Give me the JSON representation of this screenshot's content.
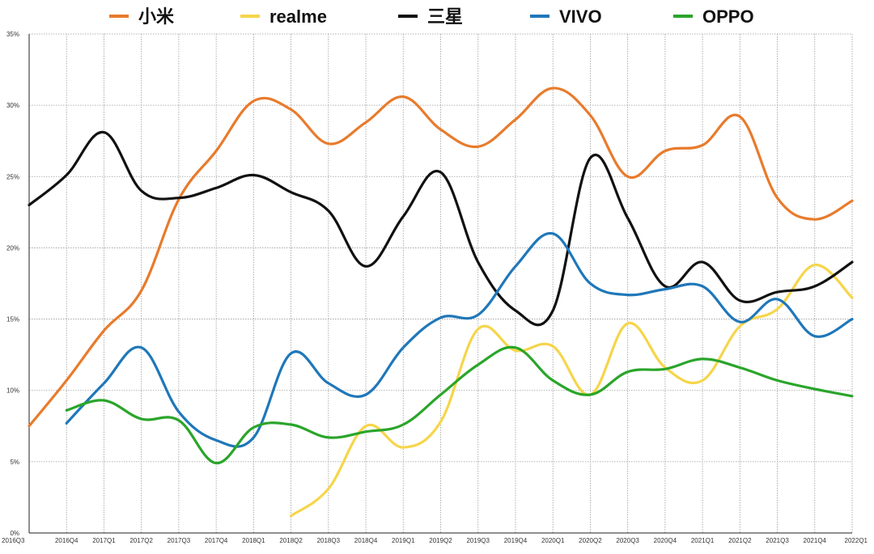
{
  "chart_data": {
    "type": "line",
    "title": "",
    "xlabel": "",
    "ylabel": "",
    "x": [
      "2016Q3",
      "2016Q4",
      "2017Q1",
      "2017Q2",
      "2017Q3",
      "2017Q4",
      "2018Q1",
      "2018Q2",
      "2018Q3",
      "2018Q4",
      "2019Q1",
      "2019Q2",
      "2019Q3",
      "2019Q4",
      "2020Q1",
      "2020Q2",
      "2020Q3",
      "2020Q4",
      "2021Q1",
      "2021Q2",
      "2021Q3",
      "2021Q4",
      "2022Q1"
    ],
    "ylim": [
      0,
      35
    ],
    "yticks": [
      "0%",
      "5%",
      "10%",
      "15%",
      "20%",
      "25%",
      "30%",
      "35%"
    ],
    "grid": true,
    "legend_position": "top",
    "series": [
      {
        "name": "小米",
        "color": "#e87b2c",
        "values": [
          7.5,
          10.7,
          14.2,
          17.0,
          23.4,
          26.8,
          30.3,
          29.7,
          27.3,
          28.8,
          30.6,
          28.3,
          27.1,
          29.0,
          31.2,
          29.3,
          25.0,
          26.8,
          27.2,
          29.2,
          23.5,
          22.0,
          23.3
        ]
      },
      {
        "name": "realme",
        "color": "#f6d54a",
        "values": [
          null,
          null,
          null,
          null,
          null,
          null,
          null,
          1.2,
          3.1,
          7.5,
          6.0,
          7.8,
          14.3,
          12.8,
          13.1,
          9.7,
          14.7,
          11.6,
          10.7,
          14.5,
          15.7,
          18.8,
          16.5
        ]
      },
      {
        "name": "三星",
        "color": "#111111",
        "values": [
          23.0,
          25.1,
          28.1,
          24.0,
          23.5,
          24.2,
          25.1,
          23.9,
          22.6,
          18.7,
          22.2,
          25.3,
          19.0,
          15.6,
          15.6,
          26.3,
          22.1,
          17.3,
          19.0,
          16.3,
          16.9,
          17.3,
          19.0
        ]
      },
      {
        "name": "VIVO",
        "color": "#1f77b9",
        "values": [
          null,
          7.7,
          10.5,
          13.0,
          8.5,
          6.5,
          6.7,
          12.6,
          10.5,
          9.7,
          13.0,
          15.1,
          15.3,
          18.7,
          21.0,
          17.5,
          16.7,
          17.1,
          17.3,
          14.8,
          16.4,
          13.8,
          15.0
        ]
      },
      {
        "name": "OPPO",
        "color": "#2aa52a",
        "values": [
          null,
          8.6,
          9.3,
          8.0,
          7.9,
          4.9,
          7.4,
          7.6,
          6.7,
          7.1,
          7.6,
          9.7,
          11.8,
          13.0,
          10.7,
          9.7,
          11.3,
          11.5,
          12.2,
          11.6,
          10.7,
          10.1,
          9.6
        ]
      }
    ]
  }
}
